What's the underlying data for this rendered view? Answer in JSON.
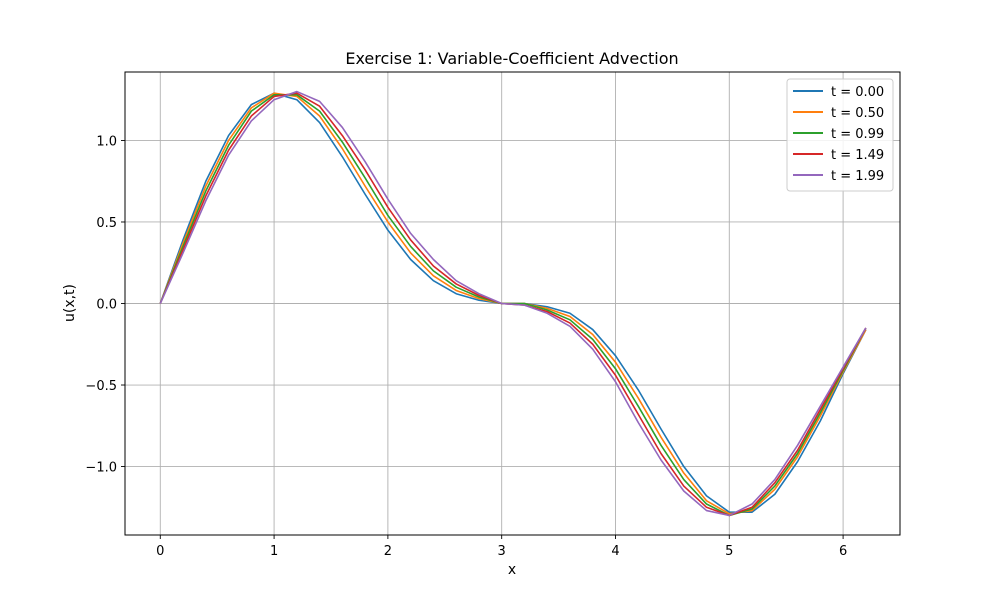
{
  "chart_data": {
    "type": "line",
    "title": "Exercise 1: Variable-Coefficient Advection",
    "xlabel": "x",
    "ylabel": "u(x,t)",
    "xlim": [
      -0.31,
      6.5
    ],
    "ylim": [
      -1.42,
      1.42
    ],
    "xticks": [
      {
        "value": 0,
        "label": "0"
      },
      {
        "value": 1,
        "label": "1"
      },
      {
        "value": 2,
        "label": "2"
      },
      {
        "value": 3,
        "label": "3"
      },
      {
        "value": 4,
        "label": "4"
      },
      {
        "value": 5,
        "label": "5"
      },
      {
        "value": 6,
        "label": "6"
      }
    ],
    "yticks": [
      {
        "value": -1.0,
        "label": "−1.0"
      },
      {
        "value": -0.5,
        "label": "−0.5"
      },
      {
        "value": 0.0,
        "label": "0.0"
      },
      {
        "value": 0.5,
        "label": "0.5"
      },
      {
        "value": 1.0,
        "label": "1.0"
      }
    ],
    "grid": true,
    "legend_position": "upper right",
    "x": [
      0.0,
      0.2,
      0.4,
      0.6,
      0.8,
      1.0,
      1.2,
      1.4,
      1.6,
      1.8,
      2.0,
      2.2,
      2.4,
      2.6,
      2.8,
      3.0,
      3.2,
      3.4,
      3.6,
      3.8,
      4.0,
      4.2,
      4.4,
      4.6,
      4.8,
      5.0,
      5.2,
      5.4,
      5.6,
      5.8,
      6.0,
      6.2
    ],
    "series": [
      {
        "name": "t = 0.00",
        "color": "#1f77b4",
        "values": [
          0.0,
          0.39,
          0.75,
          1.03,
          1.22,
          1.29,
          1.25,
          1.11,
          0.9,
          0.67,
          0.45,
          0.27,
          0.14,
          0.06,
          0.02,
          0.0,
          -0.0,
          -0.02,
          -0.06,
          -0.16,
          -0.32,
          -0.53,
          -0.77,
          -1.0,
          -1.18,
          -1.28,
          -1.28,
          -1.17,
          -0.97,
          -0.72,
          -0.43,
          -0.16
        ]
      },
      {
        "name": "t = 0.50",
        "color": "#ff7f0e",
        "values": [
          0.0,
          0.37,
          0.72,
          1.0,
          1.2,
          1.29,
          1.27,
          1.15,
          0.95,
          0.72,
          0.5,
          0.31,
          0.17,
          0.08,
          0.03,
          0.0,
          -0.0,
          -0.03,
          -0.08,
          -0.19,
          -0.36,
          -0.58,
          -0.82,
          -1.04,
          -1.21,
          -1.29,
          -1.27,
          -1.14,
          -0.94,
          -0.69,
          -0.42,
          -0.16
        ]
      },
      {
        "name": "t = 0.99",
        "color": "#2ca02c",
        "values": [
          0.0,
          0.35,
          0.69,
          0.97,
          1.18,
          1.28,
          1.28,
          1.18,
          0.99,
          0.77,
          0.54,
          0.35,
          0.2,
          0.1,
          0.04,
          0.0,
          -0.0,
          -0.04,
          -0.1,
          -0.22,
          -0.4,
          -0.63,
          -0.87,
          -1.08,
          -1.23,
          -1.3,
          -1.26,
          -1.12,
          -0.92,
          -0.67,
          -0.41,
          -0.15
        ]
      },
      {
        "name": "t = 1.49",
        "color": "#d62728",
        "values": [
          0.0,
          0.33,
          0.66,
          0.94,
          1.15,
          1.27,
          1.29,
          1.21,
          1.03,
          0.82,
          0.59,
          0.39,
          0.23,
          0.12,
          0.05,
          0.0,
          -0.01,
          -0.05,
          -0.12,
          -0.25,
          -0.44,
          -0.68,
          -0.92,
          -1.12,
          -1.25,
          -1.3,
          -1.25,
          -1.1,
          -0.9,
          -0.65,
          -0.4,
          -0.15
        ]
      },
      {
        "name": "t = 1.99",
        "color": "#9467bd",
        "values": [
          0.0,
          0.31,
          0.63,
          0.91,
          1.12,
          1.25,
          1.3,
          1.24,
          1.08,
          0.87,
          0.64,
          0.43,
          0.27,
          0.14,
          0.06,
          0.0,
          -0.01,
          -0.06,
          -0.14,
          -0.28,
          -0.48,
          -0.73,
          -0.96,
          -1.15,
          -1.27,
          -1.3,
          -1.23,
          -1.08,
          -0.87,
          -0.63,
          -0.39,
          -0.15
        ]
      }
    ]
  }
}
